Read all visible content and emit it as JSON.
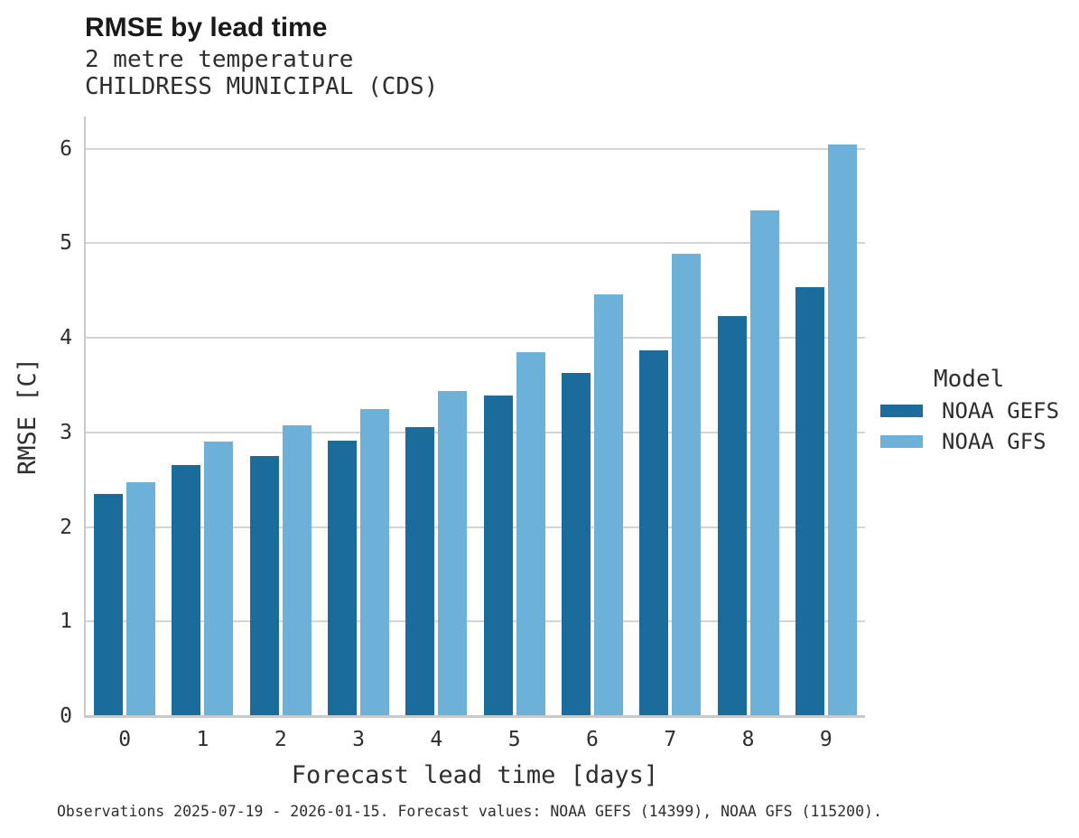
{
  "header": {
    "title": "RMSE by lead time",
    "subtitle_line1": "2 metre temperature",
    "subtitle_line2": "CHILDRESS MUNICIPAL (CDS)"
  },
  "chart_data": {
    "type": "bar",
    "title": "RMSE by lead time",
    "subtitle": "2 metre temperature — CHILDRESS MUNICIPAL (CDS)",
    "categories": [
      "0",
      "1",
      "2",
      "3",
      "4",
      "5",
      "6",
      "7",
      "8",
      "9"
    ],
    "series": [
      {
        "name": "NOAA GEFS",
        "color": "#1b6c9b",
        "values": [
          2.35,
          2.65,
          2.75,
          2.91,
          3.06,
          3.39,
          3.63,
          3.87,
          4.23,
          4.54
        ]
      },
      {
        "name": "NOAA GFS",
        "color": "#6db1d8",
        "values": [
          2.47,
          2.9,
          3.07,
          3.25,
          3.44,
          3.85,
          4.46,
          4.89,
          5.35,
          6.04
        ]
      }
    ],
    "xlabel": "Forecast lead time [days]",
    "ylabel": "RMSE [C]",
    "yticks": [
      0,
      1,
      2,
      3,
      4,
      5,
      6
    ],
    "ylim": [
      0,
      6.34
    ],
    "grid": "horizontal-major",
    "legend_title": "Model",
    "legend_position": "right"
  },
  "caption": {
    "text": "Observations 2025-07-19 - 2026-01-15. Forecast values: NOAA GEFS (14399), NOAA GFS (115200)."
  }
}
